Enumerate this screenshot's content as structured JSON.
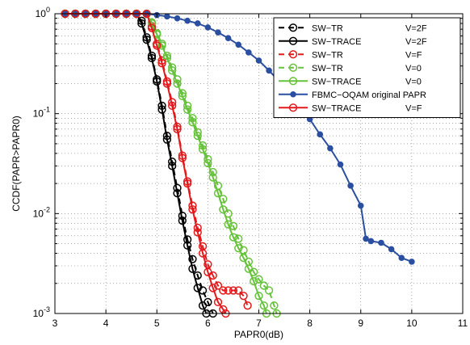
{
  "chart_data": {
    "type": "line",
    "title": "",
    "xlabel": "PAPR0(dB)",
    "ylabel": "CCDF(PAPR>PAPR0)",
    "xlim": [
      3,
      11
    ],
    "ylim": [
      0.001,
      1
    ],
    "yscale": "log",
    "grid": true,
    "legend_position": "top-right",
    "xticks": [
      "3",
      "4",
      "5",
      "6",
      "7",
      "8",
      "9",
      "10",
      "11"
    ],
    "yticks": [
      {
        "value": 1,
        "base": "10",
        "exp": "0"
      },
      {
        "value": 0.1,
        "base": "10",
        "exp": "-1"
      },
      {
        "value": 0.01,
        "base": "10",
        "exp": "-2"
      },
      {
        "value": 0.001,
        "base": "10",
        "exp": "-3"
      }
    ],
    "series": [
      {
        "name": "SW−TR",
        "param": "V=2F",
        "color": "#000000",
        "dash": true,
        "marker": "circle",
        "points": [
          [
            3.2,
            1
          ],
          [
            3.4,
            1
          ],
          [
            3.6,
            1
          ],
          [
            3.8,
            1
          ],
          [
            4.0,
            1
          ],
          [
            4.2,
            1
          ],
          [
            4.4,
            1
          ],
          [
            4.6,
            1
          ],
          [
            4.7,
            0.85
          ],
          [
            4.8,
            0.58
          ],
          [
            4.9,
            0.38
          ],
          [
            5.0,
            0.22
          ],
          [
            5.1,
            0.12
          ],
          [
            5.2,
            0.06
          ],
          [
            5.3,
            0.033
          ],
          [
            5.4,
            0.018
          ],
          [
            5.5,
            0.0095
          ],
          [
            5.6,
            0.0055
          ],
          [
            5.7,
            0.0035
          ],
          [
            5.8,
            0.0024
          ],
          [
            5.9,
            0.0017
          ],
          [
            6.0,
            0.0013
          ],
          [
            6.1,
            0.001
          ]
        ]
      },
      {
        "name": "SW−TRACE",
        "param": "V=2F",
        "color": "#000000",
        "dash": false,
        "marker": "circle",
        "points": [
          [
            3.2,
            1
          ],
          [
            3.4,
            1
          ],
          [
            3.6,
            1
          ],
          [
            3.8,
            1
          ],
          [
            4.0,
            1
          ],
          [
            4.2,
            1
          ],
          [
            4.4,
            1
          ],
          [
            4.6,
            1
          ],
          [
            4.7,
            0.8
          ],
          [
            4.8,
            0.55
          ],
          [
            4.9,
            0.36
          ],
          [
            5.0,
            0.21
          ],
          [
            5.1,
            0.11
          ],
          [
            5.2,
            0.055
          ],
          [
            5.3,
            0.03
          ],
          [
            5.4,
            0.016
          ],
          [
            5.5,
            0.0085
          ],
          [
            5.6,
            0.0048
          ],
          [
            5.7,
            0.0028
          ],
          [
            5.8,
            0.0018
          ],
          [
            5.9,
            0.0012
          ],
          [
            5.97,
            0.001
          ]
        ]
      },
      {
        "name": "SW−TR",
        "param": "V=F",
        "color": "#e3191c",
        "dash": true,
        "marker": "circle",
        "points": [
          [
            3.2,
            1
          ],
          [
            3.4,
            1
          ],
          [
            3.6,
            1
          ],
          [
            3.8,
            1
          ],
          [
            4.0,
            1
          ],
          [
            4.2,
            1
          ],
          [
            4.4,
            1
          ],
          [
            4.6,
            1
          ],
          [
            4.8,
            1
          ],
          [
            4.9,
            0.75
          ],
          [
            5.0,
            0.5
          ],
          [
            5.1,
            0.34
          ],
          [
            5.2,
            0.21
          ],
          [
            5.3,
            0.13
          ],
          [
            5.4,
            0.074
          ],
          [
            5.5,
            0.038
          ],
          [
            5.6,
            0.021
          ],
          [
            5.7,
            0.012
          ],
          [
            5.8,
            0.0072
          ],
          [
            5.9,
            0.0047
          ],
          [
            6.0,
            0.0031
          ],
          [
            6.1,
            0.0024
          ],
          [
            6.2,
            0.0019
          ],
          [
            6.3,
            0.0017
          ],
          [
            6.4,
            0.0017
          ],
          [
            6.5,
            0.0017
          ],
          [
            6.6,
            0.0017
          ],
          [
            6.7,
            0.0015
          ],
          [
            6.78,
            0.0012
          ]
        ]
      },
      {
        "name": "SW−TR",
        "param": "V=0",
        "color": "#66c23a",
        "dash": true,
        "marker": "circle",
        "points": [
          [
            3.2,
            1
          ],
          [
            3.4,
            1
          ],
          [
            3.6,
            1
          ],
          [
            3.8,
            1
          ],
          [
            4.0,
            1
          ],
          [
            4.2,
            1
          ],
          [
            4.4,
            1
          ],
          [
            4.6,
            1
          ],
          [
            4.8,
            1
          ],
          [
            4.9,
            0.82
          ],
          [
            5.0,
            0.64
          ],
          [
            5.1,
            0.5
          ],
          [
            5.2,
            0.38
          ],
          [
            5.3,
            0.29
          ],
          [
            5.4,
            0.22
          ],
          [
            5.5,
            0.16
          ],
          [
            5.6,
            0.12
          ],
          [
            5.7,
            0.09
          ],
          [
            5.8,
            0.065
          ],
          [
            5.9,
            0.048
          ],
          [
            6.0,
            0.035
          ],
          [
            6.1,
            0.026
          ],
          [
            6.2,
            0.019
          ],
          [
            6.3,
            0.014
          ],
          [
            6.4,
            0.01
          ],
          [
            6.5,
            0.0075
          ],
          [
            6.6,
            0.0056
          ],
          [
            6.7,
            0.0043
          ],
          [
            6.8,
            0.0033
          ],
          [
            6.9,
            0.0026
          ],
          [
            7.0,
            0.0022
          ],
          [
            7.1,
            0.0019
          ],
          [
            7.2,
            0.0017
          ],
          [
            7.3,
            0.0012
          ],
          [
            7.35,
            0.001
          ]
        ]
      },
      {
        "name": "SW−TRACE",
        "param": "V=0",
        "color": "#66c23a",
        "dash": false,
        "marker": "circle",
        "points": [
          [
            3.2,
            1
          ],
          [
            3.4,
            1
          ],
          [
            3.6,
            1
          ],
          [
            3.8,
            1
          ],
          [
            4.0,
            1
          ],
          [
            4.2,
            1
          ],
          [
            4.4,
            1
          ],
          [
            4.6,
            1
          ],
          [
            4.8,
            1
          ],
          [
            4.9,
            0.8
          ],
          [
            5.0,
            0.62
          ],
          [
            5.1,
            0.48
          ],
          [
            5.2,
            0.36
          ],
          [
            5.3,
            0.27
          ],
          [
            5.4,
            0.2
          ],
          [
            5.5,
            0.15
          ],
          [
            5.6,
            0.11
          ],
          [
            5.7,
            0.082
          ],
          [
            5.8,
            0.06
          ],
          [
            5.9,
            0.044
          ],
          [
            6.0,
            0.032
          ],
          [
            6.1,
            0.023
          ],
          [
            6.2,
            0.016
          ],
          [
            6.3,
            0.011
          ],
          [
            6.4,
            0.0078
          ],
          [
            6.5,
            0.0058
          ],
          [
            6.6,
            0.0045
          ],
          [
            6.7,
            0.0036
          ],
          [
            6.8,
            0.0028
          ],
          [
            6.9,
            0.0021
          ],
          [
            7.0,
            0.0015
          ],
          [
            7.1,
            0.0012
          ],
          [
            7.15,
            0.001
          ]
        ]
      },
      {
        "name": "FBMC−OQAM original PAPR",
        "param": "",
        "color": "#2a4fa0",
        "dash": false,
        "marker": "dot",
        "points": [
          [
            3.2,
            1
          ],
          [
            3.4,
            1
          ],
          [
            3.6,
            1
          ],
          [
            3.8,
            1
          ],
          [
            4.0,
            1
          ],
          [
            4.2,
            1
          ],
          [
            4.4,
            1
          ],
          [
            4.6,
            1
          ],
          [
            4.8,
            1
          ],
          [
            5.0,
            0.97
          ],
          [
            5.2,
            0.94
          ],
          [
            5.4,
            0.9
          ],
          [
            5.6,
            0.85
          ],
          [
            5.8,
            0.8
          ],
          [
            6.0,
            0.73
          ],
          [
            6.2,
            0.65
          ],
          [
            6.4,
            0.57
          ],
          [
            6.6,
            0.49
          ],
          [
            6.8,
            0.41
          ],
          [
            7.0,
            0.34
          ],
          [
            7.2,
            0.27
          ],
          [
            7.4,
            0.21
          ],
          [
            7.6,
            0.16
          ],
          [
            7.8,
            0.12
          ],
          [
            8.0,
            0.088
          ],
          [
            8.2,
            0.062
          ],
          [
            8.4,
            0.045
          ],
          [
            8.6,
            0.031
          ],
          [
            8.8,
            0.019
          ],
          [
            9.0,
            0.012
          ],
          [
            9.1,
            0.0056
          ],
          [
            9.2,
            0.0053
          ],
          [
            9.4,
            0.0051
          ],
          [
            9.6,
            0.0044
          ],
          [
            9.8,
            0.0036
          ],
          [
            10.0,
            0.0033
          ]
        ]
      },
      {
        "name": "SW−TRACE",
        "param": "V=F",
        "color": "#e3191c",
        "dash": false,
        "marker": "circle",
        "points": [
          [
            3.2,
            1
          ],
          [
            3.4,
            1
          ],
          [
            3.6,
            1
          ],
          [
            3.8,
            1
          ],
          [
            4.0,
            1
          ],
          [
            4.2,
            1
          ],
          [
            4.4,
            1
          ],
          [
            4.6,
            1
          ],
          [
            4.8,
            1
          ],
          [
            4.9,
            0.72
          ],
          [
            5.0,
            0.48
          ],
          [
            5.1,
            0.32
          ],
          [
            5.2,
            0.2
          ],
          [
            5.3,
            0.12
          ],
          [
            5.4,
            0.07
          ],
          [
            5.5,
            0.036
          ],
          [
            5.6,
            0.02
          ],
          [
            5.7,
            0.011
          ],
          [
            5.8,
            0.0065
          ],
          [
            5.9,
            0.004
          ],
          [
            6.0,
            0.0026
          ],
          [
            6.1,
            0.0018
          ],
          [
            6.2,
            0.0013
          ],
          [
            6.3,
            0.0011
          ],
          [
            6.35,
            0.001
          ]
        ]
      }
    ]
  }
}
